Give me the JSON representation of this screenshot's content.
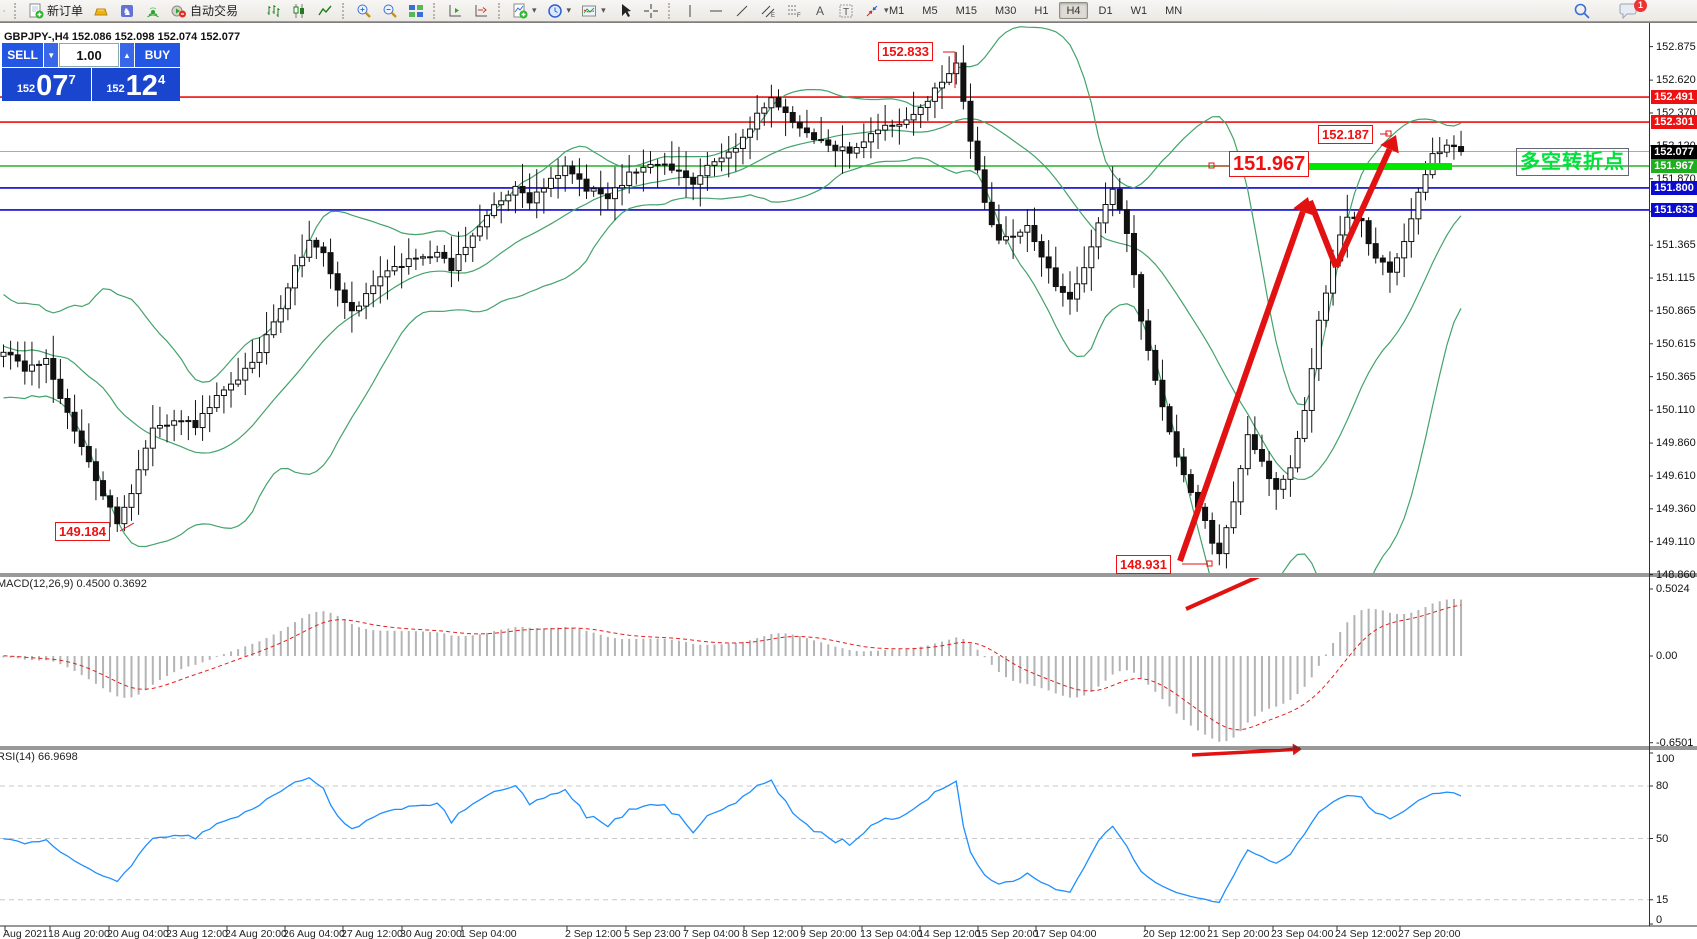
{
  "toolbar": {
    "new_order": "新订单",
    "auto_trading": "自动交易",
    "timeframes": [
      "M1",
      "M5",
      "M15",
      "M30",
      "H1",
      "H4",
      "D1",
      "W1",
      "MN"
    ],
    "active_timeframe": "H4",
    "notification_badge": "1",
    "icons": [
      "new-order",
      "gold",
      "community",
      "signals",
      "auto-trading",
      "bar-chart",
      "candlestick-chart",
      "line-chart",
      "zoom-in",
      "zoom-out",
      "tile-windows",
      "chart-shift",
      "auto-scroll",
      "add-indicator",
      "periods",
      "templates",
      "cursor",
      "crosshair",
      "vertical-line",
      "horizontal-line",
      "trendline",
      "equidistant-channel",
      "fibonacci",
      "text",
      "text-label",
      "arrows",
      "search",
      "chat"
    ]
  },
  "trade_panel": {
    "sell_label": "SELL",
    "buy_label": "BUY",
    "volume": "1.00",
    "sell_price": {
      "small": "152",
      "big": "07",
      "sup": "7"
    },
    "buy_price": {
      "small": "152",
      "big": "12",
      "sup": "4"
    }
  },
  "chart": {
    "symbol_label": "GBPJPY-,H4 152.086 152.098 152.074 152.077"
  },
  "chart_data": {
    "type": "candlestick",
    "symbol": "GBPJPY-",
    "timeframe": "H4",
    "ohlc": {
      "open": 152.086,
      "high": 152.098,
      "low": 152.074,
      "close": 152.077
    },
    "bar_count": 206,
    "y_axis": {
      "ticks": [
        "152.875",
        "152.620",
        "152.370",
        "152.120",
        "151.870",
        "151.620",
        "151.365",
        "151.115",
        "150.865",
        "150.615",
        "150.365",
        "150.110",
        "149.860",
        "149.610",
        "149.360",
        "149.110",
        "148.860"
      ]
    },
    "x_axis": {
      "labels": [
        "Aug 2021",
        "18 Aug 20:00",
        "20 Aug 04:00",
        "23 Aug 12:00",
        "24 Aug 20:00",
        "26 Aug 04:00",
        "27 Aug 12:00",
        "30 Aug 20:00",
        "1 Sep 04:00",
        "2 Sep 12:00",
        "5 Sep 23:00",
        "7 Sep 04:00",
        "8 Sep 12:00",
        "9 Sep 20:00",
        "13 Sep 04:00",
        "14 Sep 12:00",
        "15 Sep 20:00",
        "17 Sep 04:00",
        "20 Sep 12:00",
        "21 Sep 20:00",
        "23 Sep 04:00",
        "24 Sep 12:00",
        "27 Sep 20:00"
      ]
    },
    "price_path": [
      [
        0,
        150.55
      ],
      [
        3,
        150.42
      ],
      [
        6,
        150.5
      ],
      [
        8,
        150.18
      ],
      [
        11,
        149.85
      ],
      [
        14,
        149.45
      ],
      [
        16,
        149.25
      ],
      [
        18,
        149.5
      ],
      [
        21,
        149.95
      ],
      [
        24,
        150.05
      ],
      [
        27,
        150.0
      ],
      [
        30,
        150.22
      ],
      [
        33,
        150.35
      ],
      [
        36,
        150.55
      ],
      [
        39,
        150.9
      ],
      [
        41,
        151.2
      ],
      [
        43,
        151.38
      ],
      [
        45,
        151.3
      ],
      [
        47,
        151.0
      ],
      [
        49,
        150.85
      ],
      [
        52,
        151.05
      ],
      [
        55,
        151.2
      ],
      [
        58,
        151.28
      ],
      [
        61,
        151.3
      ],
      [
        63,
        151.18
      ],
      [
        66,
        151.45
      ],
      [
        69,
        151.65
      ],
      [
        72,
        151.8
      ],
      [
        74,
        151.7
      ],
      [
        77,
        151.85
      ],
      [
        79,
        151.95
      ],
      [
        82,
        151.8
      ],
      [
        85,
        151.72
      ],
      [
        88,
        151.9
      ],
      [
        91,
        152.0
      ],
      [
        94,
        151.95
      ],
      [
        97,
        151.85
      ],
      [
        100,
        152.0
      ],
      [
        103,
        152.1
      ],
      [
        106,
        152.35
      ],
      [
        108,
        152.48
      ],
      [
        110,
        152.35
      ],
      [
        113,
        152.22
      ],
      [
        116,
        152.12
      ],
      [
        119,
        152.08
      ],
      [
        122,
        152.2
      ],
      [
        125,
        152.28
      ],
      [
        128,
        152.35
      ],
      [
        131,
        152.55
      ],
      [
        134,
        152.75
      ],
      [
        136,
        152.15
      ],
      [
        138,
        151.7
      ],
      [
        140,
        151.38
      ],
      [
        142,
        151.45
      ],
      [
        144,
        151.52
      ],
      [
        146,
        151.3
      ],
      [
        148,
        151.05
      ],
      [
        150,
        150.95
      ],
      [
        152,
        151.18
      ],
      [
        154,
        151.55
      ],
      [
        156,
        151.78
      ],
      [
        158,
        151.45
      ],
      [
        160,
        150.8
      ],
      [
        162,
        150.35
      ],
      [
        164,
        149.95
      ],
      [
        166,
        149.6
      ],
      [
        168,
        149.38
      ],
      [
        170,
        149.12
      ],
      [
        171,
        149.02
      ],
      [
        173,
        149.4
      ],
      [
        175,
        149.92
      ],
      [
        177,
        149.72
      ],
      [
        179,
        149.5
      ],
      [
        181,
        149.65
      ],
      [
        183,
        150.1
      ],
      [
        185,
        150.8
      ],
      [
        187,
        151.25
      ],
      [
        189,
        151.6
      ],
      [
        191,
        151.55
      ],
      [
        193,
        151.25
      ],
      [
        195,
        151.18
      ],
      [
        197,
        151.4
      ],
      [
        199,
        151.75
      ],
      [
        201,
        152.05
      ],
      [
        203,
        152.12
      ],
      [
        205,
        152.077
      ]
    ],
    "key_points": {
      "peak_high": 152.833,
      "left_low": 149.184,
      "right_low": 148.931,
      "right_swing_high": 152.187,
      "last_close": 152.077
    },
    "levels": [
      {
        "text": "152.491",
        "price": 152.491,
        "line_color": "#ee1111",
        "badge_color": "#ee1111"
      },
      {
        "text": "152.301",
        "price": 152.301,
        "line_color": "#ee1111",
        "badge_color": "#ee1111"
      },
      {
        "text": "152.077",
        "price": 152.077,
        "line_color": "#aaaaaa",
        "badge_color": "#000000",
        "role": "bid"
      },
      {
        "text": "151.967",
        "price": 151.967,
        "line_color": "#27b227",
        "badge_color": "#1fae1f"
      },
      {
        "text": "151.800",
        "price": 151.8,
        "line_color": "#0a0ad0",
        "badge_color": "#0a0ad0"
      },
      {
        "text": "151.633",
        "price": 151.633,
        "line_color": "#0a0ad0",
        "badge_color": "#0a0ad0"
      }
    ],
    "annotations": [
      {
        "id": "peak",
        "text": "152.833"
      },
      {
        "id": "right-swing",
        "text": "152.187"
      },
      {
        "id": "entry-level",
        "text": "151.967"
      },
      {
        "id": "left-low",
        "text": "149.184"
      },
      {
        "id": "right-low",
        "text": "148.931"
      },
      {
        "id": "turning-point",
        "text": "多空转折点",
        "color": "#00e33c"
      }
    ],
    "drawings": {
      "trend_arrow_color": "#e31212",
      "highlight_segment_color": "#00e800",
      "bollinger_color": "#43a36b"
    },
    "indicators": {
      "macd": {
        "label": "MACD(12,26,9) 0.4500 0.3692",
        "fast": 12,
        "slow": 26,
        "signal": 9,
        "value": 0.45,
        "signal_value": 0.3692,
        "axis_ticks": [
          "0.5024",
          "0.00",
          "-0.6501"
        ],
        "histogram_color": "#b4b4b4",
        "signal_color": "#e02020"
      },
      "rsi": {
        "label": "RSI(14) 66.9698",
        "period": 14,
        "value": 66.9698,
        "axis_ticks": [
          "100",
          "80",
          "50",
          "15",
          "0"
        ],
        "level_lines": [
          80,
          50,
          15
        ],
        "line_color": "#1f8fff"
      }
    }
  }
}
